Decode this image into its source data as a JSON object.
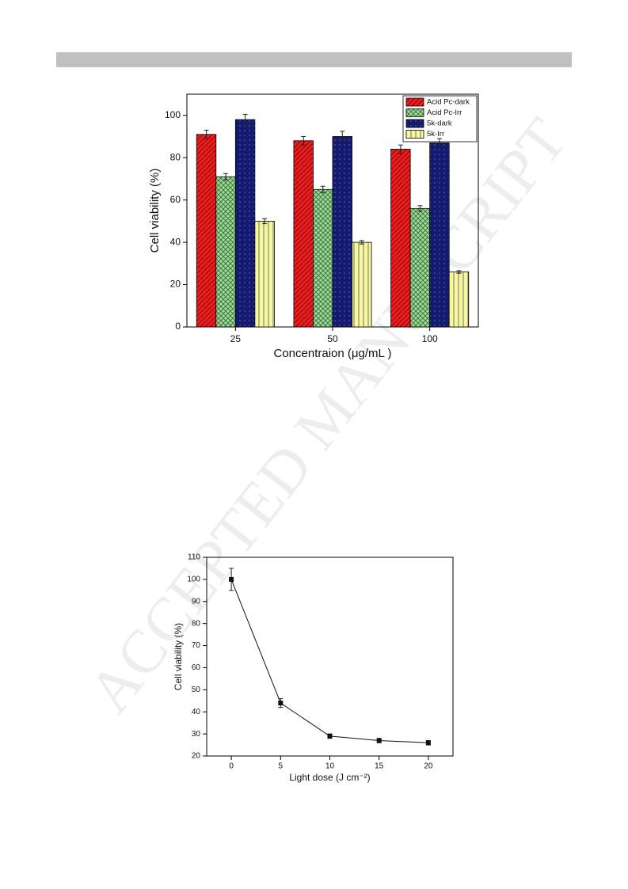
{
  "watermark": "ACCEPTED MANUSCRIPT",
  "chart_data": [
    {
      "type": "bar",
      "x_label": "Concentraion (μg/mL )",
      "y_label": "Cell viability (%)",
      "categories": [
        "25",
        "50",
        "100"
      ],
      "ylim": [
        0,
        110
      ],
      "yticks": [
        0,
        20,
        40,
        60,
        80,
        100
      ],
      "legend": "top-right",
      "series": [
        {
          "name": "Acid Pc-dark",
          "color": "#ee1c1c",
          "pattern": "diagonal",
          "values": [
            91,
            88,
            84
          ],
          "errors": [
            2,
            2,
            2
          ]
        },
        {
          "name": "Acid Pc-Irr",
          "color": "#9fd79a",
          "pattern": "crosshatch",
          "values": [
            71,
            65,
            56
          ],
          "errors": [
            1.5,
            1.5,
            1.3
          ]
        },
        {
          "name": "5k-dark",
          "color": "#141a6e",
          "pattern": "dots",
          "values": [
            98,
            90,
            87
          ],
          "errors": [
            2.5,
            2.5,
            2
          ]
        },
        {
          "name": "5k-Irr",
          "color": "#f7f7a0",
          "pattern": "vertical",
          "values": [
            50,
            40,
            26
          ],
          "errors": [
            1.2,
            0.8,
            0.6
          ]
        }
      ]
    },
    {
      "type": "line",
      "x_label": "Light dose (J cm⁻²)",
      "y_label": "Cell viability (%)",
      "x": [
        0,
        5,
        10,
        15,
        20
      ],
      "xlim": [
        -2.5,
        22.5
      ],
      "xticks": [
        0,
        5,
        10,
        15,
        20
      ],
      "ylim": [
        20,
        110
      ],
      "yticks": [
        20,
        30,
        40,
        50,
        60,
        70,
        80,
        90,
        100,
        110
      ],
      "series": [
        {
          "color": "#111111",
          "values": [
            100,
            44,
            29,
            27,
            26
          ],
          "errors": [
            5,
            2,
            1,
            1,
            1
          ]
        }
      ]
    }
  ]
}
